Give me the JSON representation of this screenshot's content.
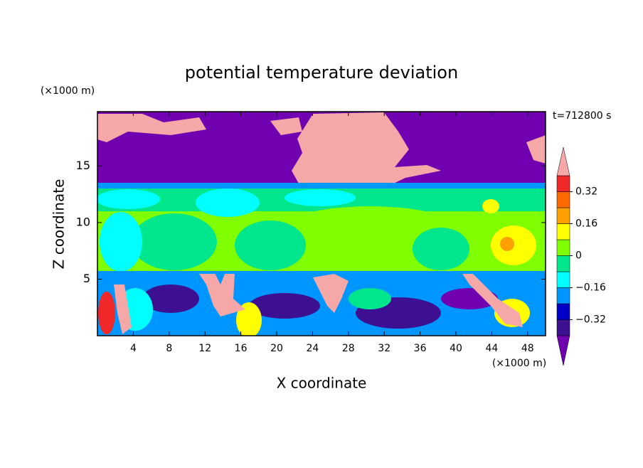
{
  "chart_data": {
    "type": "contour",
    "title": "potential temperature deviation",
    "x_label": "X coordinate",
    "y_label": "Z coordinate",
    "x_unit": "(×1000 m)",
    "y_unit": "(×1000 m)",
    "annotation": "t=712800 s",
    "xlim": [
      0,
      50
    ],
    "ylim": [
      0,
      19.8
    ],
    "xticks": [
      4,
      8,
      12,
      16,
      20,
      24,
      28,
      32,
      36,
      40,
      44,
      48
    ],
    "yticks": [
      5,
      10,
      15
    ],
    "levels": [
      -0.4,
      -0.32,
      -0.24,
      -0.16,
      -0.08,
      0,
      0.08,
      0.16,
      0.24,
      0.32,
      0.4
    ],
    "colors": [
      "#7000b0",
      "#3c1090",
      "#0000c8",
      "#0096ff",
      "#00ffff",
      "#00e68c",
      "#80ff00",
      "#ffff00",
      "#ffa000",
      "#ff6a00",
      "#f02828",
      "#f6a8a8"
    ],
    "colorbar_ticks": [
      {
        "value": 0.32,
        "label": "0.32"
      },
      {
        "value": 0.16,
        "label": "0.16"
      },
      0,
      {
        "value": -0.16,
        "label": "−0.16"
      },
      {
        "value": -0.32,
        "label": "−0.32"
      }
    ]
  }
}
